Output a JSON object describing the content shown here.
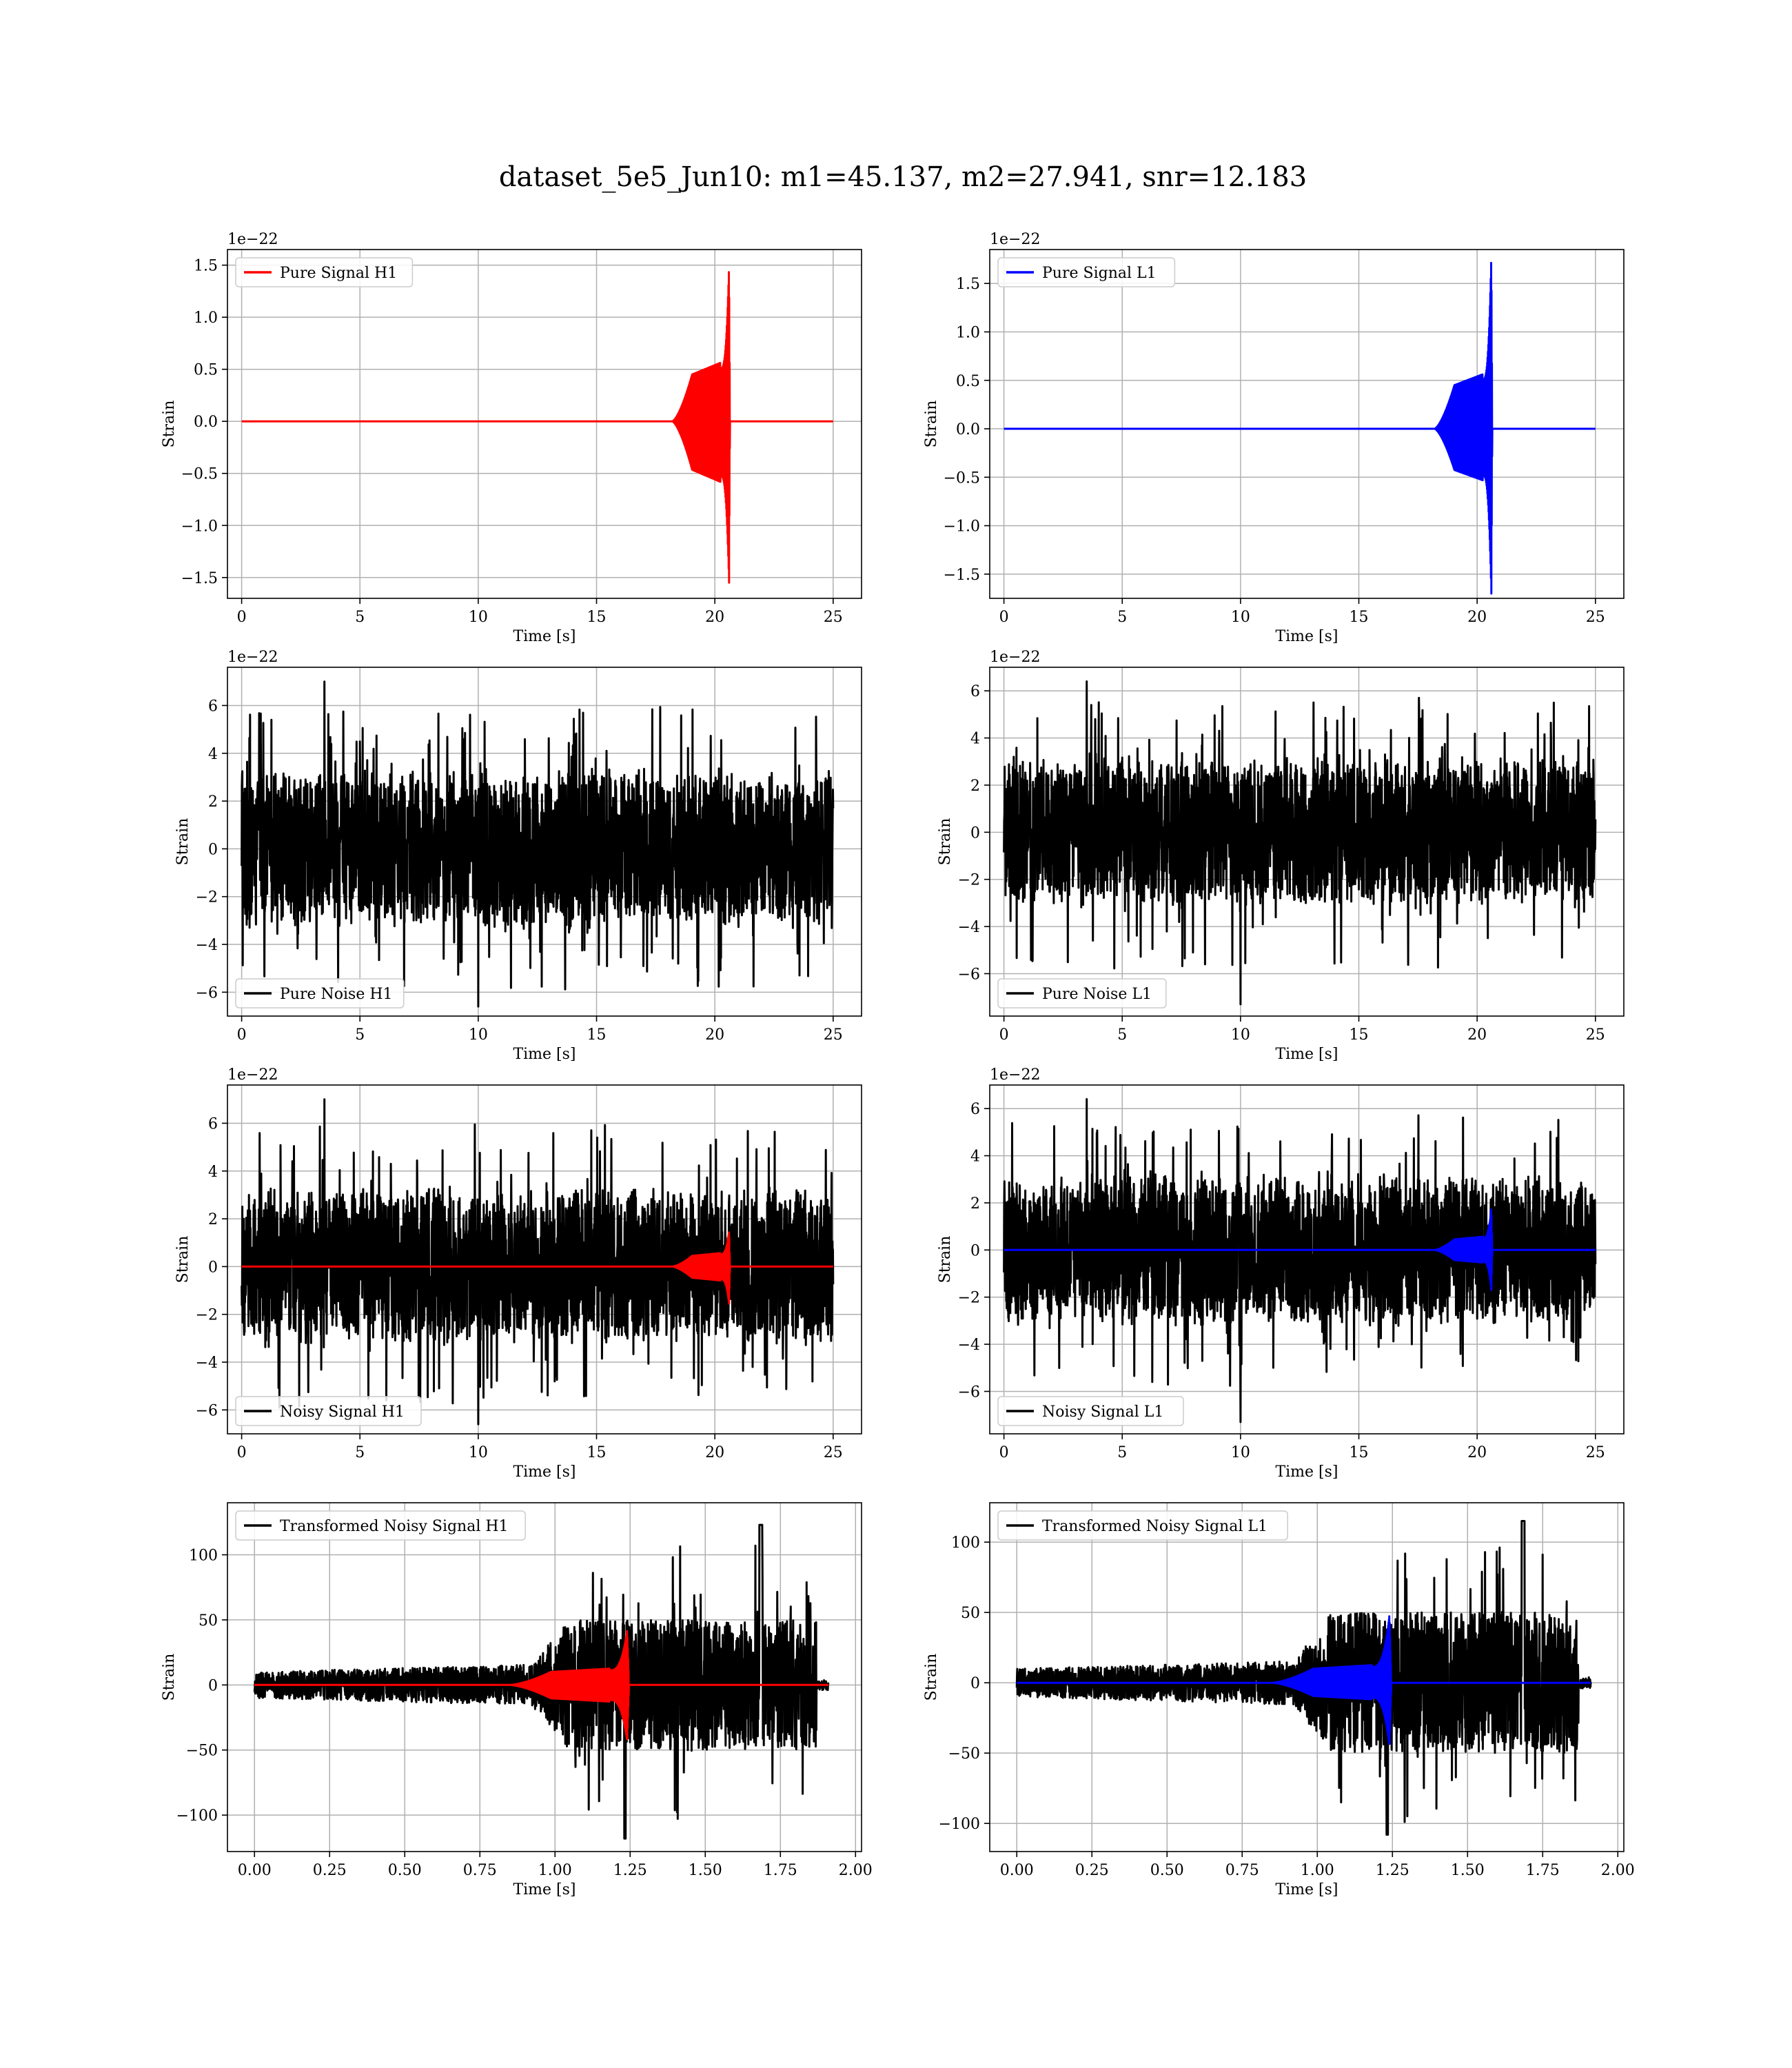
{
  "figure": {
    "title": "dataset_5e5_Jun10: m1=45.137, m2=27.941, snr=12.183"
  },
  "colors": {
    "h1_signal": "#ff0000",
    "l1_signal": "#0000ff",
    "noise": "#000000",
    "grid": "#b0b0b0"
  },
  "chart_data": [
    {
      "id": "pure-signal-h1",
      "type": "line",
      "xlabel": "Time [s]",
      "ylabel": "Strain",
      "offset_text": "1e−22",
      "xlim": [
        -0.6,
        26.2
      ],
      "ylim": [
        -1.7,
        1.65
      ],
      "xticks": [
        0,
        5,
        10,
        15,
        20,
        25
      ],
      "yticks": [
        -1.5,
        -1.0,
        -0.5,
        0.0,
        0.5,
        1.0,
        1.5
      ],
      "ytick_labels": [
        "−1.5",
        "−1.0",
        "−0.5",
        "0.0",
        "0.5",
        "1.0",
        "1.5"
      ],
      "grid": true,
      "legend": {
        "position": "upper-left"
      },
      "series": [
        {
          "name": "Pure Signal H1",
          "color": "#ff0000",
          "kind": "chirp",
          "x_range": [
            0,
            25
          ],
          "onset": 18.2,
          "merger": 20.6,
          "peak_pos": 1.5,
          "peak_neg": -1.55,
          "plateau": 0.45,
          "baseline": 0
        }
      ]
    },
    {
      "id": "pure-signal-l1",
      "type": "line",
      "xlabel": "Time [s]",
      "ylabel": "Strain",
      "offset_text": "1e−22",
      "xlim": [
        -0.6,
        26.2
      ],
      "ylim": [
        -1.75,
        1.85
      ],
      "xticks": [
        0,
        5,
        10,
        15,
        20,
        25
      ],
      "yticks": [
        -1.5,
        -1.0,
        -0.5,
        0.0,
        0.5,
        1.0,
        1.5
      ],
      "ytick_labels": [
        "−1.5",
        "−1.0",
        "−0.5",
        "0.0",
        "0.5",
        "1.0",
        "1.5"
      ],
      "grid": true,
      "legend": {
        "position": "upper-left"
      },
      "series": [
        {
          "name": "Pure Signal L1",
          "color": "#0000ff",
          "kind": "chirp",
          "x_range": [
            0,
            25
          ],
          "onset": 18.2,
          "merger": 20.6,
          "peak_pos": 1.8,
          "peak_neg": -1.7,
          "plateau": 0.45,
          "baseline": 0
        }
      ]
    },
    {
      "id": "pure-noise-h1",
      "type": "line",
      "xlabel": "Time [s]",
      "ylabel": "Strain",
      "offset_text": "1e−22",
      "xlim": [
        -0.6,
        26.2
      ],
      "ylim": [
        -7.0,
        7.6
      ],
      "xticks": [
        0,
        5,
        10,
        15,
        20,
        25
      ],
      "yticks": [
        -6,
        -4,
        -2,
        0,
        2,
        4,
        6
      ],
      "ytick_labels": [
        "−6",
        "−4",
        "−2",
        "0",
        "2",
        "4",
        "6"
      ],
      "grid": true,
      "legend": {
        "position": "lower-left"
      },
      "series": [
        {
          "name": "Pure Noise H1",
          "color": "#000000",
          "kind": "noise",
          "x_range": [
            0,
            25
          ],
          "core": 3.4,
          "max": 7.0,
          "min": -6.6
        }
      ]
    },
    {
      "id": "pure-noise-l1",
      "type": "line",
      "xlabel": "Time [s]",
      "ylabel": "Strain",
      "offset_text": "1e−22",
      "xlim": [
        -0.6,
        26.2
      ],
      "ylim": [
        -7.8,
        7.0
      ],
      "xticks": [
        0,
        5,
        10,
        15,
        20,
        25
      ],
      "yticks": [
        -6,
        -4,
        -2,
        0,
        2,
        4,
        6
      ],
      "ytick_labels": [
        "−6",
        "−4",
        "−2",
        "0",
        "2",
        "4",
        "6"
      ],
      "grid": true,
      "legend": {
        "position": "lower-left"
      },
      "series": [
        {
          "name": "Pure Noise L1",
          "color": "#000000",
          "kind": "noise",
          "x_range": [
            0,
            25
          ],
          "core": 3.3,
          "max": 6.4,
          "min": -7.3
        }
      ]
    },
    {
      "id": "noisy-signal-h1",
      "type": "line",
      "xlabel": "Time [s]",
      "ylabel": "Strain",
      "offset_text": "1e−22",
      "xlim": [
        -0.6,
        26.2
      ],
      "ylim": [
        -7.0,
        7.6
      ],
      "xticks": [
        0,
        5,
        10,
        15,
        20,
        25
      ],
      "yticks": [
        -6,
        -4,
        -2,
        0,
        2,
        4,
        6
      ],
      "ytick_labels": [
        "−6",
        "−4",
        "−2",
        "0",
        "2",
        "4",
        "6"
      ],
      "grid": true,
      "legend": {
        "position": "lower-left"
      },
      "series": [
        {
          "name": "Noisy Signal H1",
          "color": "#000000",
          "kind": "noise",
          "x_range": [
            0,
            25
          ],
          "core": 3.4,
          "max": 7.0,
          "min": -6.6
        },
        {
          "color": "#ff0000",
          "kind": "chirp",
          "x_range": [
            0,
            25
          ],
          "onset": 18.2,
          "merger": 20.6,
          "peak_pos": 1.5,
          "peak_neg": -1.55,
          "plateau": 0.45,
          "baseline": 0
        }
      ]
    },
    {
      "id": "noisy-signal-l1",
      "type": "line",
      "xlabel": "Time [s]",
      "ylabel": "Strain",
      "offset_text": "1e−22",
      "xlim": [
        -0.6,
        26.2
      ],
      "ylim": [
        -7.8,
        7.0
      ],
      "xticks": [
        0,
        5,
        10,
        15,
        20,
        25
      ],
      "yticks": [
        -6,
        -4,
        -2,
        0,
        2,
        4,
        6
      ],
      "ytick_labels": [
        "−6",
        "−4",
        "−2",
        "0",
        "2",
        "4",
        "6"
      ],
      "grid": true,
      "legend": {
        "position": "lower-left"
      },
      "series": [
        {
          "name": "Noisy Signal L1",
          "color": "#000000",
          "kind": "noise",
          "x_range": [
            0,
            25
          ],
          "core": 3.3,
          "max": 6.4,
          "min": -7.3
        },
        {
          "color": "#0000ff",
          "kind": "chirp",
          "x_range": [
            0,
            25
          ],
          "onset": 18.2,
          "merger": 20.6,
          "peak_pos": 1.8,
          "peak_neg": -1.7,
          "plateau": 0.45,
          "baseline": 0
        }
      ]
    },
    {
      "id": "transformed-noisy-signal-h1",
      "type": "line",
      "xlabel": "Time [s]",
      "ylabel": "Strain",
      "offset_text": "",
      "xlim": [
        -0.09,
        2.02
      ],
      "ylim": [
        -128,
        140
      ],
      "xticks": [
        0.0,
        0.25,
        0.5,
        0.75,
        1.0,
        1.25,
        1.5,
        1.75,
        2.0
      ],
      "xtick_labels": [
        "0.00",
        "0.25",
        "0.50",
        "0.75",
        "1.00",
        "1.25",
        "1.50",
        "1.75",
        "2.00"
      ],
      "yticks": [
        -100,
        -50,
        0,
        50,
        100
      ],
      "ytick_labels": [
        "−100",
        "−50",
        "0",
        "50",
        "100"
      ],
      "grid": true,
      "legend": {
        "position": "upper-left"
      },
      "series": [
        {
          "name": "Transformed Noisy Signal H1",
          "color": "#000000",
          "kind": "whitened",
          "x_range": [
            0,
            1.91
          ],
          "cut": 1.87,
          "pre_amp": 10,
          "post_amp": 50,
          "max": 123,
          "min": -118
        },
        {
          "color": "#ff0000",
          "kind": "chirp",
          "x_range": [
            0,
            1.91
          ],
          "onset": 0.85,
          "merger": 1.24,
          "peak_pos": 42,
          "peak_neg": -43,
          "plateau": 10,
          "baseline": 0
        }
      ]
    },
    {
      "id": "transformed-noisy-signal-l1",
      "type": "line",
      "xlabel": "Time [s]",
      "ylabel": "Strain",
      "offset_text": "",
      "xlim": [
        -0.09,
        2.02
      ],
      "ylim": [
        -120,
        128
      ],
      "xticks": [
        0.0,
        0.25,
        0.5,
        0.75,
        1.0,
        1.25,
        1.5,
        1.75,
        2.0
      ],
      "xtick_labels": [
        "0.00",
        "0.25",
        "0.50",
        "0.75",
        "1.00",
        "1.25",
        "1.50",
        "1.75",
        "2.00"
      ],
      "yticks": [
        -100,
        -50,
        0,
        50,
        100
      ],
      "ytick_labels": [
        "−100",
        "−50",
        "0",
        "50",
        "100"
      ],
      "grid": true,
      "legend": {
        "position": "upper-left"
      },
      "series": [
        {
          "name": "Transformed Noisy Signal L1",
          "color": "#000000",
          "kind": "whitened",
          "x_range": [
            0,
            1.91
          ],
          "cut": 1.87,
          "pre_amp": 10,
          "post_amp": 50,
          "max": 115,
          "min": -108
        },
        {
          "color": "#0000ff",
          "kind": "chirp",
          "x_range": [
            0,
            1.91
          ],
          "onset": 0.85,
          "merger": 1.24,
          "peak_pos": 48,
          "peak_neg": -45,
          "plateau": 10,
          "baseline": 0
        }
      ]
    }
  ]
}
